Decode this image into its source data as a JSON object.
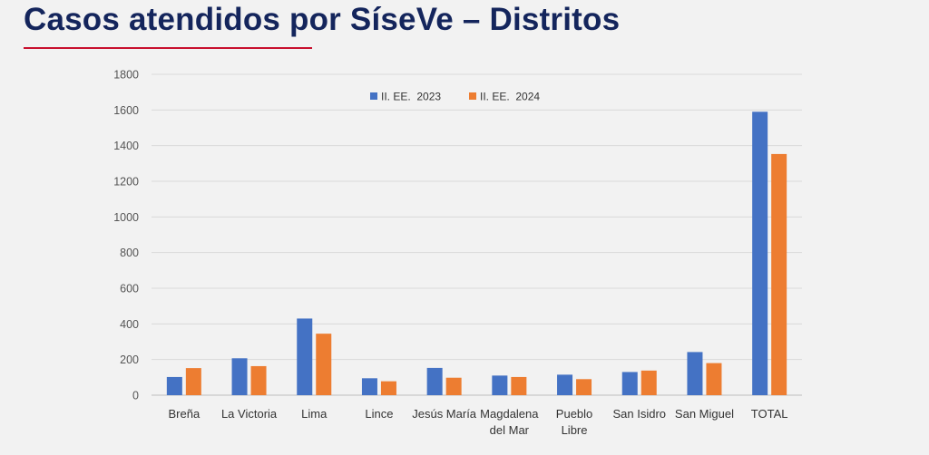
{
  "slide": {
    "title": "Casos atendidos por SíseVe – Distritos"
  },
  "colors": {
    "title": "#14255c",
    "accent_rule": "#c8102e",
    "series_2023": "#4472c4",
    "series_2024": "#ed7d31",
    "background": "#f2f2f2"
  },
  "chart_data": {
    "type": "bar",
    "categories": [
      [
        "Breña"
      ],
      [
        "La Victoria"
      ],
      [
        "Lima"
      ],
      [
        "Lince"
      ],
      [
        "Jesús María"
      ],
      [
        "Magdalena",
        "del Mar"
      ],
      [
        "Pueblo",
        "Libre"
      ],
      [
        "San Isidro"
      ],
      [
        "San Miguel"
      ],
      [
        "TOTAL"
      ]
    ],
    "series": [
      {
        "name": "II. EE.  2023",
        "color": "#4472c4",
        "values": [
          102,
          207,
          430,
          95,
          153,
          110,
          115,
          130,
          242,
          1590
        ]
      },
      {
        "name": "II. EE.  2024",
        "color": "#ed7d31",
        "values": [
          152,
          163,
          345,
          78,
          98,
          102,
          90,
          138,
          180,
          1353
        ]
      }
    ],
    "ylim": [
      0,
      1800
    ],
    "yticks": [
      0,
      200,
      400,
      600,
      800,
      1000,
      1200,
      1400,
      1600,
      1800
    ],
    "grid": true,
    "legend": "top-center"
  }
}
